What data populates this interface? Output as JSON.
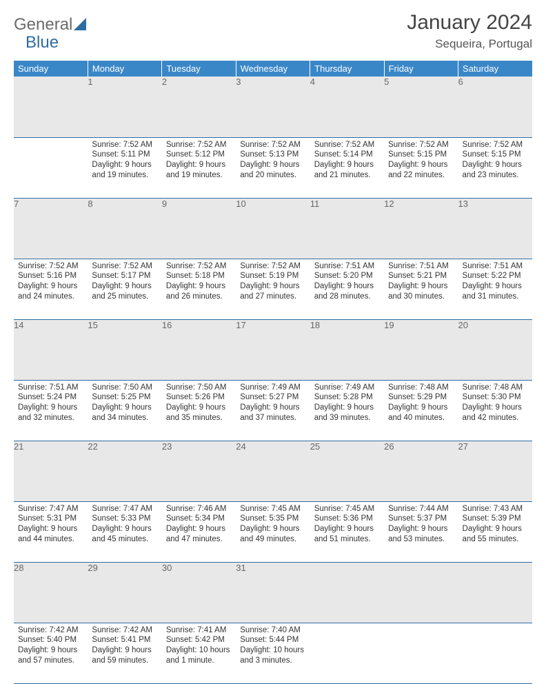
{
  "brand": {
    "part1": "General",
    "part2": "Blue"
  },
  "header": {
    "title": "January 2024",
    "location": "Sequeira, Portugal"
  },
  "style": {
    "header_bg": "#3a87c8",
    "header_text": "#ffffff",
    "daynum_bg": "#e8e8e8",
    "daynum_text": "#666666",
    "body_text": "#333333",
    "rule_color": "#2d6ca2",
    "cell_fontsize": "11.5px",
    "th_fontsize": "13px",
    "title_fontsize": "30px",
    "location_fontsize": "17px"
  },
  "columns": [
    "Sunday",
    "Monday",
    "Tuesday",
    "Wednesday",
    "Thursday",
    "Friday",
    "Saturday"
  ],
  "weeks": [
    [
      null,
      {
        "n": "1",
        "sr": "7:52 AM",
        "ss": "5:11 PM",
        "dl": "9 hours and 19 minutes."
      },
      {
        "n": "2",
        "sr": "7:52 AM",
        "ss": "5:12 PM",
        "dl": "9 hours and 19 minutes."
      },
      {
        "n": "3",
        "sr": "7:52 AM",
        "ss": "5:13 PM",
        "dl": "9 hours and 20 minutes."
      },
      {
        "n": "4",
        "sr": "7:52 AM",
        "ss": "5:14 PM",
        "dl": "9 hours and 21 minutes."
      },
      {
        "n": "5",
        "sr": "7:52 AM",
        "ss": "5:15 PM",
        "dl": "9 hours and 22 minutes."
      },
      {
        "n": "6",
        "sr": "7:52 AM",
        "ss": "5:15 PM",
        "dl": "9 hours and 23 minutes."
      }
    ],
    [
      {
        "n": "7",
        "sr": "7:52 AM",
        "ss": "5:16 PM",
        "dl": "9 hours and 24 minutes."
      },
      {
        "n": "8",
        "sr": "7:52 AM",
        "ss": "5:17 PM",
        "dl": "9 hours and 25 minutes."
      },
      {
        "n": "9",
        "sr": "7:52 AM",
        "ss": "5:18 PM",
        "dl": "9 hours and 26 minutes."
      },
      {
        "n": "10",
        "sr": "7:52 AM",
        "ss": "5:19 PM",
        "dl": "9 hours and 27 minutes."
      },
      {
        "n": "11",
        "sr": "7:51 AM",
        "ss": "5:20 PM",
        "dl": "9 hours and 28 minutes."
      },
      {
        "n": "12",
        "sr": "7:51 AM",
        "ss": "5:21 PM",
        "dl": "9 hours and 30 minutes."
      },
      {
        "n": "13",
        "sr": "7:51 AM",
        "ss": "5:22 PM",
        "dl": "9 hours and 31 minutes."
      }
    ],
    [
      {
        "n": "14",
        "sr": "7:51 AM",
        "ss": "5:24 PM",
        "dl": "9 hours and 32 minutes."
      },
      {
        "n": "15",
        "sr": "7:50 AM",
        "ss": "5:25 PM",
        "dl": "9 hours and 34 minutes."
      },
      {
        "n": "16",
        "sr": "7:50 AM",
        "ss": "5:26 PM",
        "dl": "9 hours and 35 minutes."
      },
      {
        "n": "17",
        "sr": "7:49 AM",
        "ss": "5:27 PM",
        "dl": "9 hours and 37 minutes."
      },
      {
        "n": "18",
        "sr": "7:49 AM",
        "ss": "5:28 PM",
        "dl": "9 hours and 39 minutes."
      },
      {
        "n": "19",
        "sr": "7:48 AM",
        "ss": "5:29 PM",
        "dl": "9 hours and 40 minutes."
      },
      {
        "n": "20",
        "sr": "7:48 AM",
        "ss": "5:30 PM",
        "dl": "9 hours and 42 minutes."
      }
    ],
    [
      {
        "n": "21",
        "sr": "7:47 AM",
        "ss": "5:31 PM",
        "dl": "9 hours and 44 minutes."
      },
      {
        "n": "22",
        "sr": "7:47 AM",
        "ss": "5:33 PM",
        "dl": "9 hours and 45 minutes."
      },
      {
        "n": "23",
        "sr": "7:46 AM",
        "ss": "5:34 PM",
        "dl": "9 hours and 47 minutes."
      },
      {
        "n": "24",
        "sr": "7:45 AM",
        "ss": "5:35 PM",
        "dl": "9 hours and 49 minutes."
      },
      {
        "n": "25",
        "sr": "7:45 AM",
        "ss": "5:36 PM",
        "dl": "9 hours and 51 minutes."
      },
      {
        "n": "26",
        "sr": "7:44 AM",
        "ss": "5:37 PM",
        "dl": "9 hours and 53 minutes."
      },
      {
        "n": "27",
        "sr": "7:43 AM",
        "ss": "5:39 PM",
        "dl": "9 hours and 55 minutes."
      }
    ],
    [
      {
        "n": "28",
        "sr": "7:42 AM",
        "ss": "5:40 PM",
        "dl": "9 hours and 57 minutes."
      },
      {
        "n": "29",
        "sr": "7:42 AM",
        "ss": "5:41 PM",
        "dl": "9 hours and 59 minutes."
      },
      {
        "n": "30",
        "sr": "7:41 AM",
        "ss": "5:42 PM",
        "dl": "10 hours and 1 minute."
      },
      {
        "n": "31",
        "sr": "7:40 AM",
        "ss": "5:44 PM",
        "dl": "10 hours and 3 minutes."
      },
      null,
      null,
      null
    ]
  ]
}
